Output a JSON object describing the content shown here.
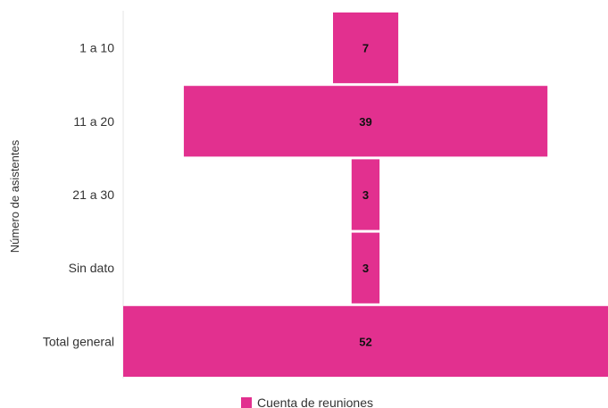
{
  "chart_data": {
    "type": "bar",
    "orientation": "horizontal-funnel",
    "categories": [
      "1 a 10",
      "11 a 20",
      "21 a 30",
      "Sin dato",
      "Total general"
    ],
    "values": [
      7,
      39,
      3,
      3,
      52
    ],
    "ylabel": "Número de asistentes",
    "xlabel": "",
    "grid": false,
    "legend_position": "bottom",
    "series": [
      {
        "name": "Cuenta de reuniones",
        "color": "#E2308F",
        "values": [
          7,
          39,
          3,
          3,
          52
        ]
      }
    ]
  }
}
